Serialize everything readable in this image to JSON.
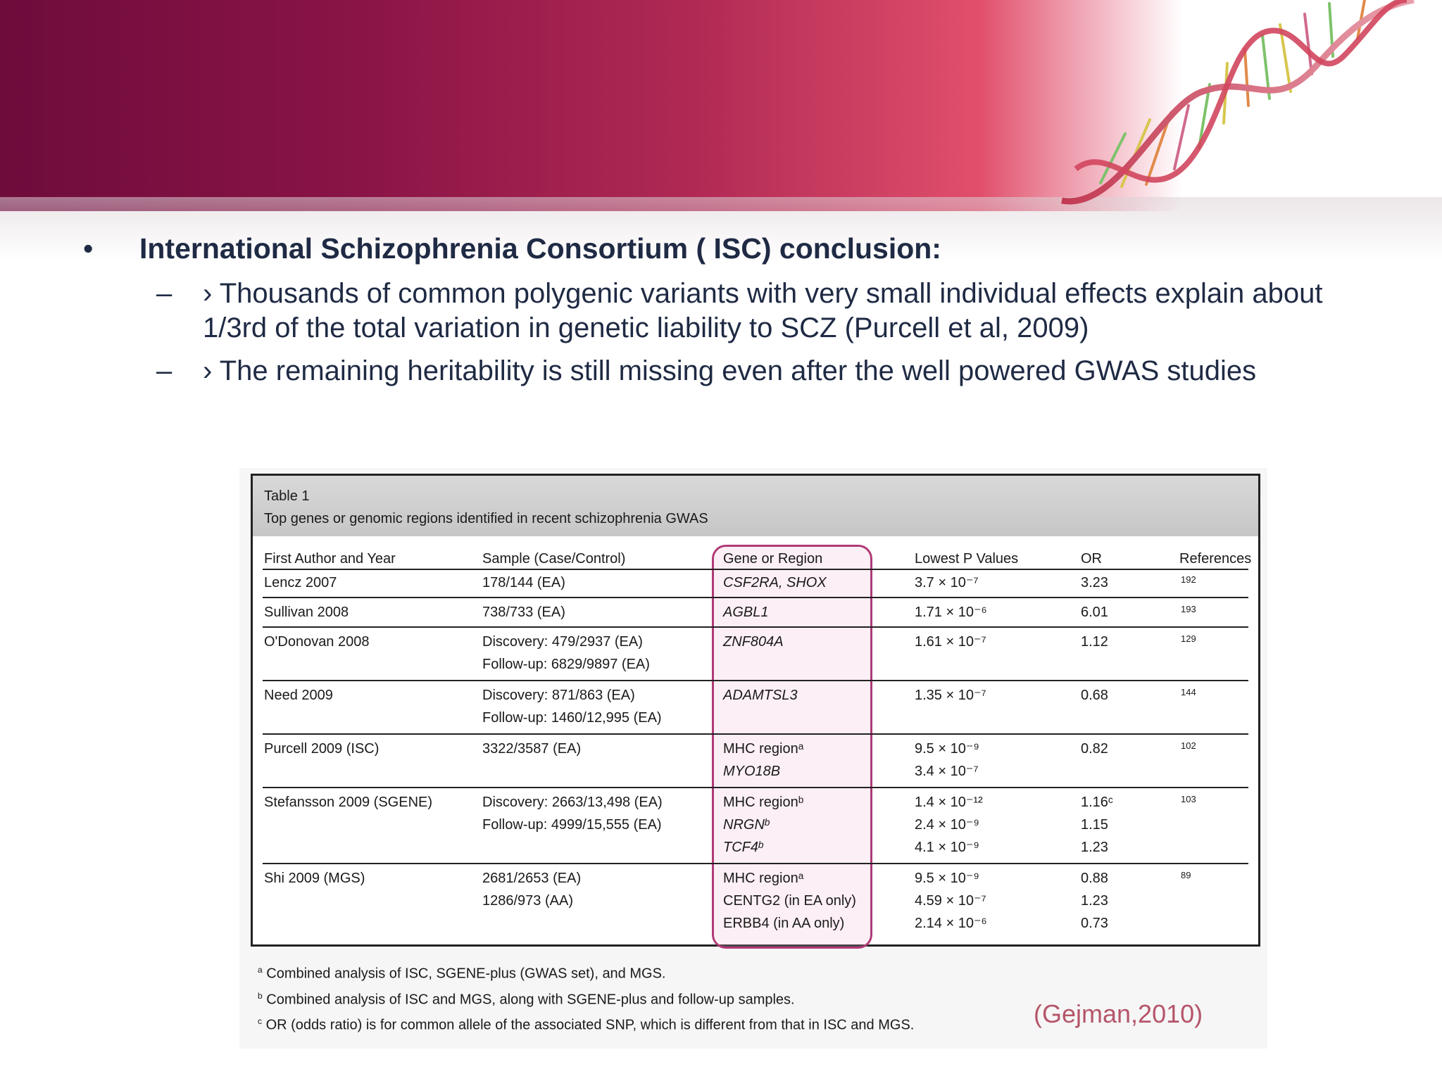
{
  "bullet": {
    "marker": "•",
    "text": "International Schizophrenia Consortium ( ISC) conclusion:"
  },
  "sub_bullets": [
    {
      "marker": "–",
      "text": "› Thousands of common polygenic variants with very small individual effects explain about 1/3rd of the total variation in genetic liability to SCZ (Purcell et al, 2009)"
    },
    {
      "marker": "–",
      "text": "› The remaining heritability is still missing even after the well powered GWAS studies"
    }
  ],
  "table": {
    "title": "Table 1",
    "caption": "Top genes or genomic regions identified in recent schizophrenia GWAS",
    "headers": [
      "First Author and Year",
      "Sample (Case/Control)",
      "Gene or Region",
      "Lowest P Values",
      "OR",
      "References"
    ],
    "rows": [
      {
        "author": "Lencz 2007",
        "sample": [
          "178/144 (EA)"
        ],
        "gene": [
          "CSF2RA, SHOX"
        ],
        "p": [
          "3.7 × 10⁻⁷"
        ],
        "or": [
          "3.23"
        ],
        "ref": "192"
      },
      {
        "author": "Sullivan 2008",
        "sample": [
          "738/733 (EA)"
        ],
        "gene": [
          "AGBL1"
        ],
        "p": [
          "1.71 × 10⁻⁶"
        ],
        "or": [
          "6.01"
        ],
        "ref": "193"
      },
      {
        "author": "O'Donovan 2008",
        "sample": [
          "Discovery: 479/2937 (EA)",
          "Follow-up: 6829/9897 (EA)"
        ],
        "gene": [
          "ZNF804A"
        ],
        "p": [
          "1.61 × 10⁻⁷"
        ],
        "or": [
          "1.12"
        ],
        "ref": "129"
      },
      {
        "author": "Need 2009",
        "sample": [
          "Discovery: 871/863 (EA)",
          "Follow-up: 1460/12,995 (EA)"
        ],
        "gene": [
          "ADAMTSL3"
        ],
        "p": [
          "1.35 × 10⁻⁷"
        ],
        "or": [
          "0.68"
        ],
        "ref": "144"
      },
      {
        "author": "Purcell 2009 (ISC)",
        "sample": [
          "3322/3587 (EA)"
        ],
        "gene": [
          "MHC regionᵃ",
          "MYO18B"
        ],
        "p": [
          "9.5 × 10⁻⁹",
          "3.4 × 10⁻⁷"
        ],
        "or": [
          "0.82"
        ],
        "ref": "102"
      },
      {
        "author": "Stefansson 2009 (SGENE)",
        "sample": [
          "Discovery: 2663/13,498 (EA)",
          "Follow-up: 4999/15,555 (EA)"
        ],
        "gene": [
          "MHC regionᵇ",
          "NRGNᵇ",
          "TCF4ᵇ"
        ],
        "p": [
          "1.4 × 10⁻¹²",
          "2.4 × 10⁻⁹",
          "4.1 × 10⁻⁹"
        ],
        "or": [
          "1.16ᶜ",
          "1.15",
          "1.23"
        ],
        "ref": "103"
      },
      {
        "author": "Shi 2009 (MGS)",
        "sample": [
          "2681/2653 (EA)",
          "1286/973 (AA)"
        ],
        "gene": [
          "MHC regionᵃ",
          "CENTG2 (in EA only)",
          "ERBB4 (in AA only)"
        ],
        "p": [
          "9.5 × 10⁻⁹",
          "4.59 × 10⁻⁷",
          "2.14 × 10⁻⁶"
        ],
        "or": [
          "0.88",
          "1.23",
          "0.73"
        ],
        "ref": "89"
      }
    ],
    "footnotes": [
      {
        "mark": "a",
        "text": "Combined analysis of ISC, SGENE-plus (GWAS set), and MGS."
      },
      {
        "mark": "b",
        "text": "Combined analysis of ISC and MGS, along with SGENE-plus and follow-up samples."
      },
      {
        "mark": "c",
        "text": "OR (odds ratio) is for common allele of the associated SNP, which is different from that in ISC and MGS."
      }
    ],
    "citation": "(Gejman,2010)"
  },
  "colors": {
    "banner_dark": "#6e0c3c",
    "banner_mid": "#b02954",
    "banner_light": "#e14f6c",
    "highlight": "#b03a77",
    "text": "#1f2a44",
    "citation": "#b5556a"
  }
}
